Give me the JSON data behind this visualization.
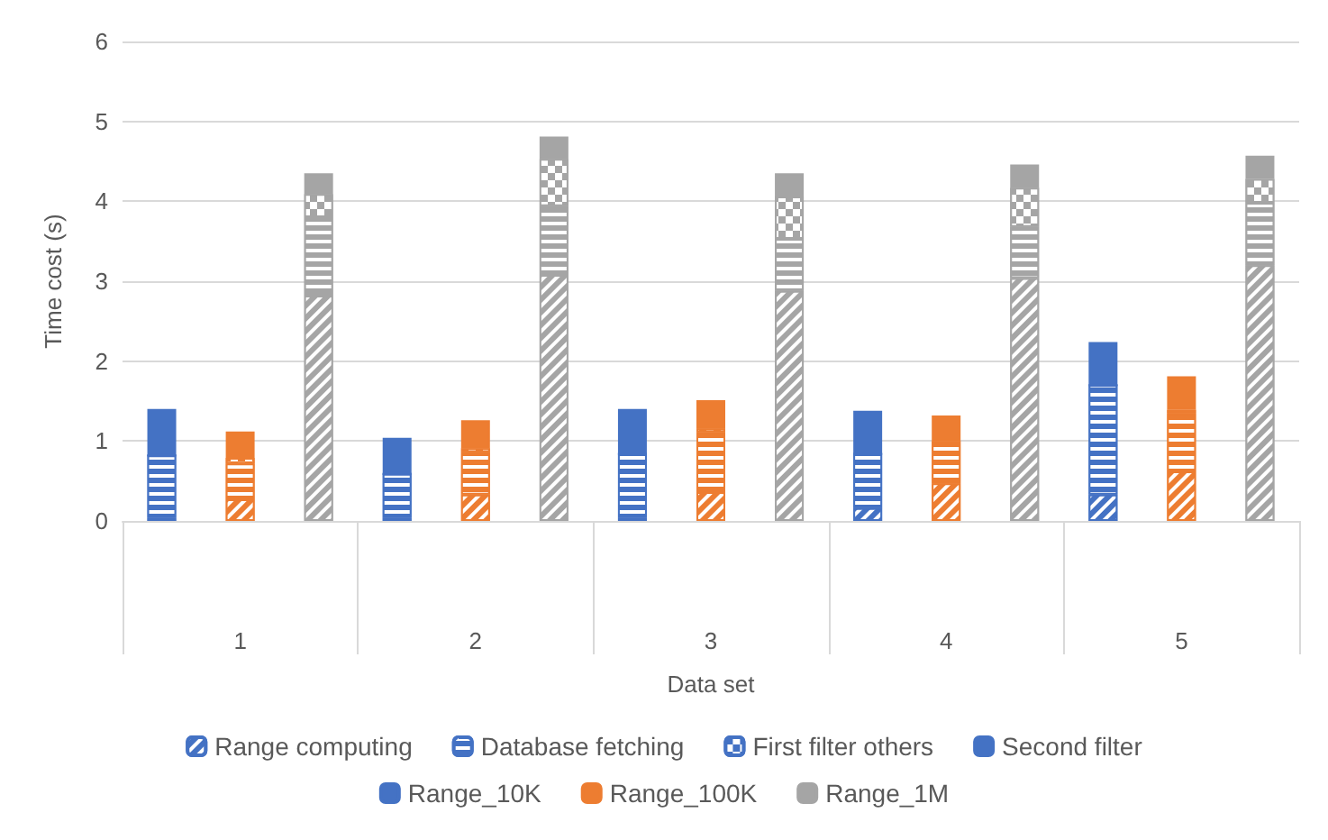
{
  "chart_data": {
    "type": "bar",
    "stacked": true,
    "xlabel": "Data set",
    "ylabel": "Time cost (s)",
    "categories": [
      null,
      "1",
      null,
      null,
      "2",
      null,
      null,
      "3",
      null,
      null,
      "4",
      null,
      null,
      "5",
      null
    ],
    "ylim": [
      0,
      6
    ],
    "yticks": [
      0,
      1,
      2,
      3,
      4,
      5,
      6
    ],
    "grid": "y",
    "legend": "bottom",
    "series": [
      {
        "name": "Range computing",
        "color": "#4472c4",
        "colors": [
          "#4472c4",
          "#ed7d31",
          "#a5a5a5",
          "#4472c4",
          "#ed7d31",
          "#a5a5a5",
          "#4472c4",
          "#ed7d31",
          "#a5a5a5",
          "#4472c4",
          "#ed7d31",
          "#a5a5a5",
          "#4472c4",
          "#ed7d31",
          "#a5a5a5"
        ],
        "values": [
          0.04,
          0.27,
          2.82,
          0.04,
          0.33,
          3.08,
          0.04,
          0.36,
          2.88,
          0.16,
          0.47,
          3.04,
          0.33,
          0.62,
          3.2
        ]
      },
      {
        "name": "Database fetching",
        "color": "#4472c4",
        "colors": [
          "#4472c4",
          "#ed7d31",
          "#a5a5a5",
          "#4472c4",
          "#ed7d31",
          "#a5a5a5",
          "#4472c4",
          "#ed7d31",
          "#a5a5a5",
          "#4472c4",
          "#ed7d31",
          "#a5a5a5",
          "#4472c4",
          "#ed7d31",
          "#a5a5a5"
        ],
        "values": [
          0.78,
          0.45,
          0.98,
          0.55,
          0.53,
          0.86,
          0.8,
          0.75,
          0.65,
          0.68,
          0.49,
          0.64,
          1.37,
          0.73,
          0.78
        ]
      },
      {
        "name": "First filter others",
        "color": "#4472c4",
        "colors": [
          "#4472c4",
          "#ed7d31",
          "#a5a5a5",
          "#4472c4",
          "#ed7d31",
          "#a5a5a5",
          "#4472c4",
          "#ed7d31",
          "#a5a5a5",
          "#4472c4",
          "#ed7d31",
          "#a5a5a5",
          "#4472c4",
          "#ed7d31",
          "#a5a5a5"
        ],
        "values": [
          0,
          0.07,
          0.29,
          0,
          0.05,
          0.59,
          0,
          0.05,
          0.53,
          0,
          0.04,
          0.49,
          0,
          0.04,
          0.3
        ]
      },
      {
        "name": "Second filter",
        "color": "#4472c4",
        "colors": [
          "#4472c4",
          "#ed7d31",
          "#a5a5a5",
          "#4472c4",
          "#ed7d31",
          "#a5a5a5",
          "#4472c4",
          "#ed7d31",
          "#a5a5a5",
          "#4472c4",
          "#ed7d31",
          "#a5a5a5",
          "#4472c4",
          "#ed7d31",
          "#a5a5a5"
        ],
        "values": [
          0.58,
          0.33,
          0.26,
          0.45,
          0.35,
          0.28,
          0.56,
          0.35,
          0.29,
          0.54,
          0.32,
          0.29,
          0.54,
          0.42,
          0.29
        ]
      },
      {
        "name": "Range_10K",
        "color": "#4472c4",
        "values": [
          null,
          null,
          null,
          null,
          null,
          null,
          null,
          null,
          null,
          null,
          null,
          null,
          null,
          null,
          null
        ]
      },
      {
        "name": "Range_100K",
        "color": "#ed7d31",
        "values": [
          null,
          null,
          null,
          null,
          null,
          null,
          null,
          null,
          null,
          null,
          null,
          null,
          null,
          null,
          null
        ]
      },
      {
        "name": "Range_1M",
        "color": "#a5a5a5",
        "values": [
          null,
          null,
          null,
          null,
          null,
          null,
          null,
          null,
          null,
          null,
          null,
          null,
          null,
          null,
          null
        ]
      }
    ]
  }
}
